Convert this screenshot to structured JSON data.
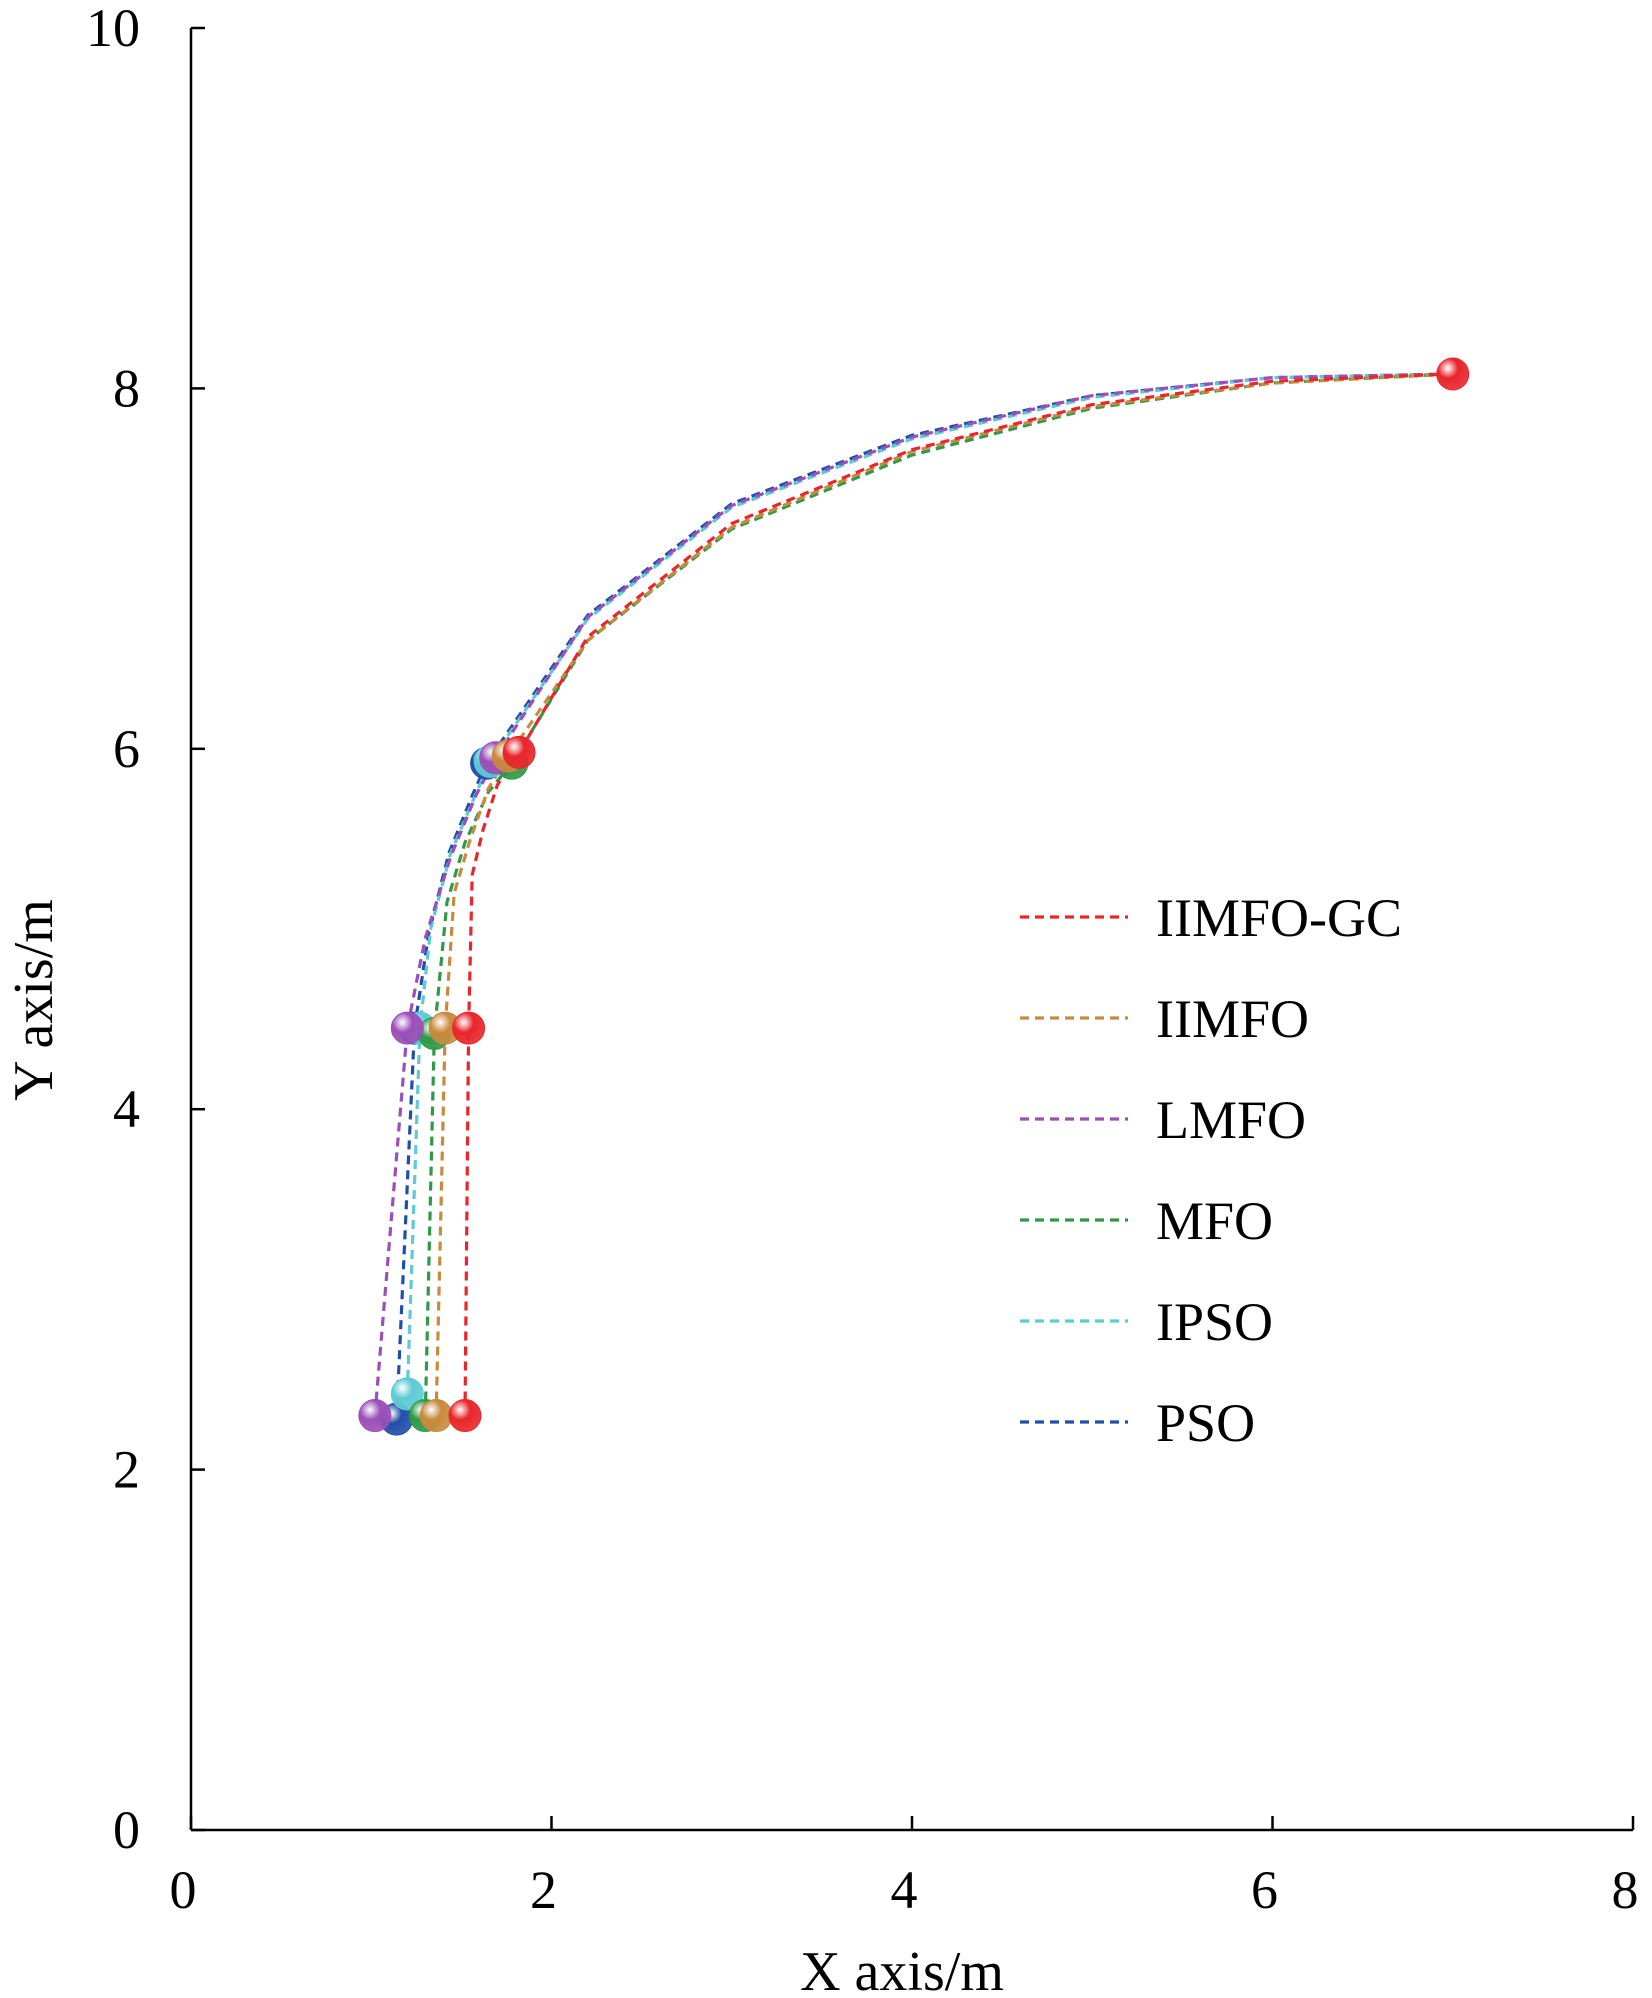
{
  "chart_data": {
    "type": "line",
    "title": "",
    "xlabel": "X axis/m",
    "ylabel": "Y axis/m",
    "xlim": [
      0,
      8
    ],
    "ylim": [
      0,
      10
    ],
    "x_ticks": [
      0,
      2,
      4,
      6,
      8
    ],
    "y_ticks": [
      0,
      2,
      4,
      6,
      8,
      10
    ],
    "grid": false,
    "legend_position": "center-right",
    "series": [
      {
        "name": "IIMFO-GC",
        "color": "#e8262b",
        "x": [
          1.52,
          1.54,
          1.56,
          1.62,
          1.7,
          1.82,
          2.2,
          3.0,
          4.0,
          5.0,
          6.0,
          7.0
        ],
        "y": [
          2.3,
          4.45,
          5.3,
          5.55,
          5.8,
          5.98,
          6.62,
          7.25,
          7.66,
          7.91,
          8.04,
          8.08
        ],
        "markers": [
          [
            1.52,
            2.3
          ],
          [
            1.54,
            4.45
          ],
          [
            1.82,
            5.98
          ],
          [
            7.0,
            8.08
          ]
        ]
      },
      {
        "name": "IIMFO",
        "color": "#c98a3e",
        "x": [
          1.36,
          1.41,
          1.46,
          1.55,
          1.65,
          1.76,
          2.2,
          3.0,
          4.0,
          5.0,
          6.0,
          7.0
        ],
        "y": [
          2.3,
          4.45,
          5.2,
          5.5,
          5.78,
          5.96,
          6.6,
          7.23,
          7.65,
          7.9,
          8.03,
          8.08
        ],
        "markers": [
          [
            1.36,
            2.3
          ],
          [
            1.41,
            4.45
          ],
          [
            1.76,
            5.96
          ]
        ]
      },
      {
        "name": "LMFO",
        "color": "#9b4fb8",
        "x": [
          1.02,
          1.2,
          1.3,
          1.44,
          1.58,
          1.69,
          2.2,
          3.0,
          4.0,
          5.0,
          6.0,
          7.0
        ],
        "y": [
          2.3,
          4.45,
          4.95,
          5.4,
          5.74,
          5.95,
          6.73,
          7.35,
          7.73,
          7.96,
          8.06,
          8.08
        ],
        "markers": [
          [
            1.02,
            2.3
          ],
          [
            1.2,
            4.45
          ],
          [
            1.69,
            5.95
          ]
        ]
      },
      {
        "name": "MFO",
        "color": "#2e9946",
        "x": [
          1.3,
          1.35,
          1.42,
          1.52,
          1.65,
          1.78,
          2.2,
          3.0,
          4.0,
          5.0,
          6.0,
          7.0
        ],
        "y": [
          2.3,
          4.42,
          5.15,
          5.48,
          5.76,
          5.92,
          6.6,
          7.22,
          7.63,
          7.89,
          8.03,
          8.08
        ],
        "markers": [
          [
            1.3,
            2.3
          ],
          [
            1.35,
            4.42
          ],
          [
            1.78,
            5.92
          ]
        ]
      },
      {
        "name": "IPSO",
        "color": "#5ecbd4",
        "x": [
          1.2,
          1.27,
          1.33,
          1.44,
          1.58,
          1.66,
          2.2,
          3.0,
          4.0,
          5.0,
          6.0,
          7.0
        ],
        "y": [
          2.42,
          4.45,
          5.0,
          5.42,
          5.75,
          5.93,
          6.72,
          7.34,
          7.72,
          7.95,
          8.06,
          8.08
        ],
        "markers": [
          [
            1.2,
            2.42
          ],
          [
            1.27,
            4.45
          ],
          [
            1.66,
            5.93
          ]
        ]
      },
      {
        "name": "PSO",
        "color": "#1f4fa8",
        "x": [
          1.14,
          1.24,
          1.32,
          1.43,
          1.56,
          1.64,
          2.2,
          3.0,
          4.0,
          5.0,
          6.0,
          7.0
        ],
        "y": [
          2.28,
          4.45,
          4.98,
          5.42,
          5.74,
          5.92,
          6.74,
          7.36,
          7.74,
          7.96,
          8.06,
          8.08
        ],
        "markers": [
          [
            1.14,
            2.28
          ],
          [
            1.24,
            4.45
          ],
          [
            1.64,
            5.92
          ]
        ]
      }
    ]
  }
}
